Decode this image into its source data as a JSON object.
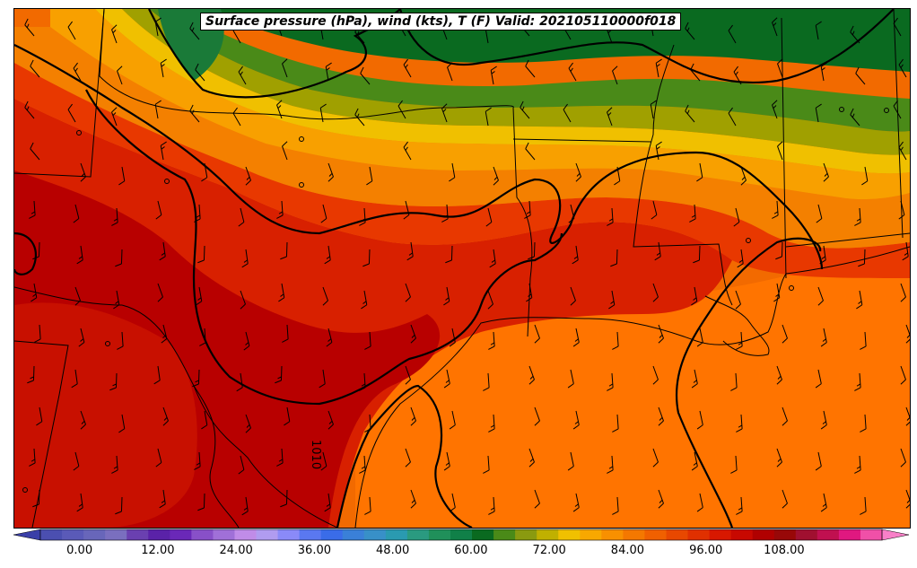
{
  "title": "Surface pressure (hPa), wind (kts), T (F) Valid: 202105110000f018",
  "isobar_label": "1010",
  "colorbar": {
    "tick_labels": [
      "0.00",
      "12.00",
      "24.00",
      "36.00",
      "48.00",
      "60.00",
      "72.00",
      "84.00",
      "96.00",
      "108.00"
    ],
    "min": -6,
    "max": 123,
    "step": 3,
    "colors": [
      "#3a3fa8",
      "#4b4fb0",
      "#5a5ab8",
      "#6866ba",
      "#7a6fbf",
      "#6a40b0",
      "#5a22a8",
      "#6a28b8",
      "#8850c8",
      "#a070d8",
      "#c08ce8",
      "#b09cf0",
      "#8a8af8",
      "#5a78f0",
      "#3a6ce8",
      "#3a80d8",
      "#3890c8",
      "#2a9ab0",
      "#2a9a80",
      "#20905a",
      "#108048",
      "#0a6a20",
      "#4a8a18",
      "#8a9a10",
      "#c0b000",
      "#f0c000",
      "#f8a800",
      "#f89000",
      "#f47800",
      "#f06000",
      "#e84800",
      "#e03000",
      "#d81800",
      "#c80800",
      "#b00000",
      "#980808",
      "#a01030",
      "#c01050",
      "#e01880",
      "#f050a8",
      "#f880c8"
    ]
  },
  "map_colors": {
    "background": "#f26a00",
    "gulf_warm": "#ff7a00",
    "deep_red": "#b80000",
    "red": "#d81800",
    "red_orange": "#e83000",
    "orange": "#f07000",
    "light_orange": "#f89000",
    "yellow": "#f0c000",
    "olive": "#a0a000",
    "green": "#4a8a18",
    "dark_green": "#0a6a20"
  }
}
